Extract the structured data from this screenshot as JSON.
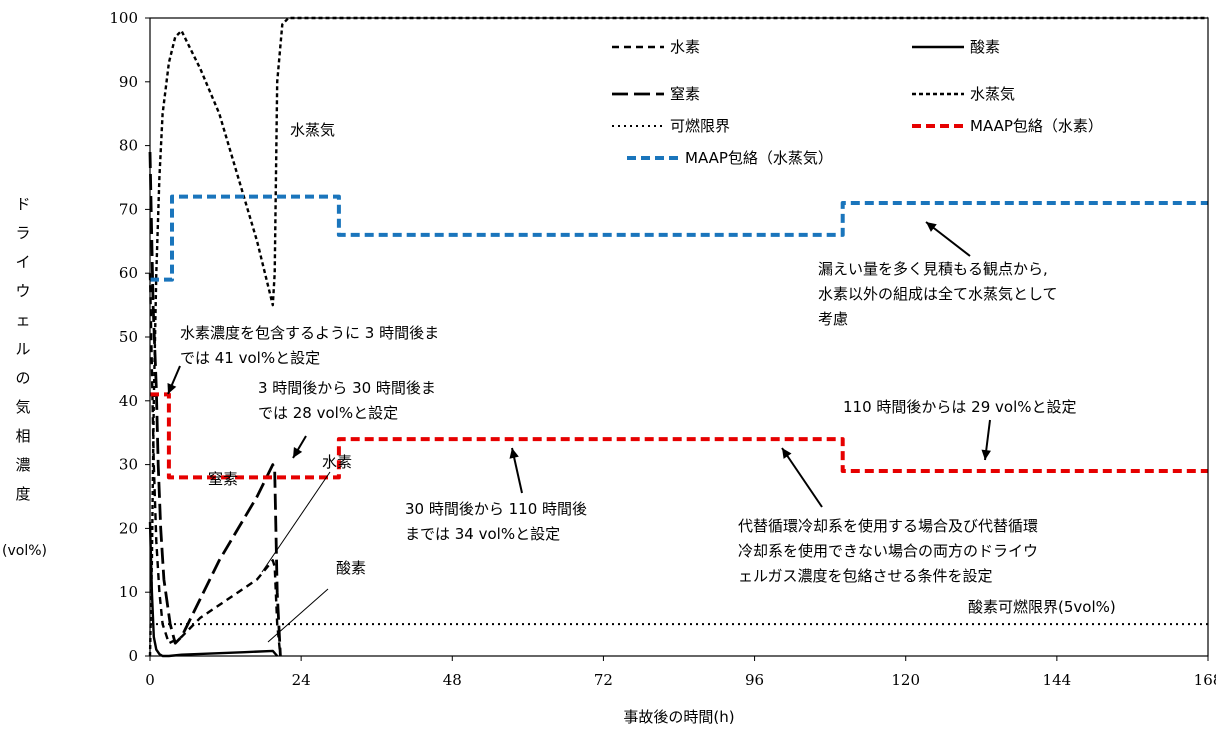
{
  "chart_data": {
    "type": "line",
    "xlabel": "事故後の時間(h)",
    "ylabel": "ドライウェルの気相濃度",
    "yunit": "(vol%)",
    "xlim": [
      0,
      168
    ],
    "ylim": [
      0,
      100
    ],
    "xticks": [
      0,
      24,
      48,
      72,
      96,
      120,
      144,
      168
    ],
    "yticks": [
      0,
      10,
      20,
      30,
      40,
      50,
      60,
      70,
      80,
      90,
      100
    ],
    "legend_position": "top-right",
    "colors": {
      "maap_h2": "#e60000",
      "maap_steam": "#1a75bc",
      "black": "#000000"
    },
    "series": [
      {
        "name": "水素",
        "style": "dashed",
        "x": [
          0,
          0.3,
          0.6,
          1.0,
          1.5,
          2.0,
          3,
          5,
          8,
          11,
          14,
          17,
          19.5,
          19.8,
          20.2,
          20.7
        ],
        "y": [
          60,
          45,
          30,
          18,
          10,
          5,
          2,
          3,
          6,
          8,
          10,
          12,
          15,
          14,
          5,
          0
        ]
      },
      {
        "name": "酸素",
        "style": "solid",
        "x": [
          0,
          0.3,
          0.6,
          1.0,
          1.5,
          2.0,
          3,
          5,
          10,
          15,
          19.5,
          20.2
        ],
        "y": [
          21,
          10,
          3,
          1,
          0.3,
          0,
          0,
          0.2,
          0.4,
          0.6,
          0.8,
          0
        ]
      },
      {
        "name": "窒素",
        "style": "longdash",
        "x": [
          0,
          0.5,
          1.0,
          1.3,
          1.7,
          2.2,
          3.2,
          4,
          5,
          8,
          11,
          14,
          17,
          19.5,
          19.8,
          20.2,
          20.7
        ],
        "y": [
          79,
          55,
          42,
          30,
          20,
          12,
          5,
          2,
          3,
          9,
          15,
          20,
          25,
          30,
          29,
          10,
          0
        ]
      },
      {
        "name": "水蒸気",
        "style": "dotted-dash",
        "x": [
          0,
          0.3,
          0.6,
          1.0,
          1.5,
          2.0,
          3.0,
          4.0,
          5.0,
          8,
          11,
          14,
          17,
          19.5,
          19.8,
          20.2,
          21,
          22,
          30,
          168
        ],
        "y": [
          0,
          15,
          40,
          60,
          75,
          85,
          93,
          97,
          98,
          92,
          85,
          75,
          65,
          55,
          60,
          90,
          99,
          100,
          100,
          100
        ]
      },
      {
        "name": "可燃限界",
        "style": "dotted",
        "x": [
          0,
          168
        ],
        "y": [
          5,
          5
        ]
      },
      {
        "name": "MAAP包絡（水素）",
        "style": "dashed-red",
        "x": [
          0,
          3,
          3,
          30,
          30,
          110,
          110,
          168
        ],
        "y": [
          41,
          41,
          28,
          28,
          34,
          34,
          29,
          29
        ]
      },
      {
        "name": "MAAP包絡（水蒸気）",
        "style": "dashed-blue",
        "x": [
          0,
          3.5,
          3.5,
          30,
          30,
          110,
          110,
          168
        ],
        "y": [
          59,
          59,
          72,
          72,
          66,
          66,
          71,
          71
        ]
      }
    ],
    "annotations": {
      "a1": [
        "水素濃度を包含するように 3 時間後ま",
        "では 41 vol%と設定"
      ],
      "a2": [
        "3 時間後から 30 時間後ま",
        "では 28 vol%と設定"
      ],
      "a3": [
        "30 時間後から 110 時間後",
        "までは 34 vol%と設定"
      ],
      "a4": [
        "110 時間後からは 29 vol%と設定"
      ],
      "a5": [
        "漏えい量を多く見積もる観点から,",
        "水素以外の組成は全て水蒸気として",
        "考慮"
      ],
      "a6": [
        "代替循環冷却系を使用する場合及び代替循環",
        "冷却系を使用できない場合の両方のドライウ",
        "ェルガス濃度を包絡させる条件を設定"
      ],
      "o2_limit": "酸素可燃限界(5vol%)",
      "label_steam": "水蒸気",
      "label_n2": "窒素",
      "label_h2": "水素",
      "label_o2": "酸素"
    }
  }
}
